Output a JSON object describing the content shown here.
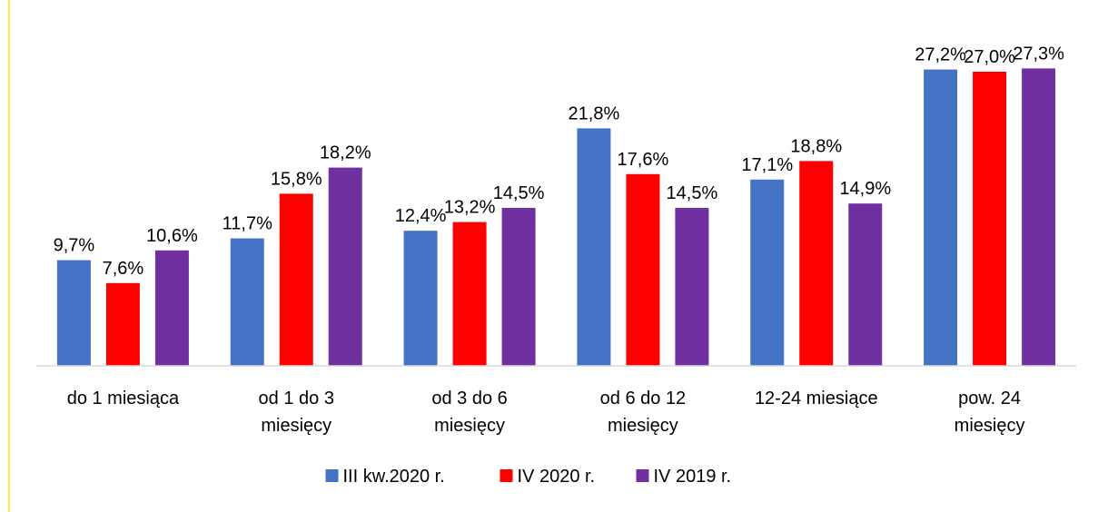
{
  "chart_data": {
    "type": "bar",
    "categories": [
      "do 1 miesiąca",
      "od 1 do 3\nmiesięcy",
      "od 3 do 6\nmiesięcy",
      "od 6 do 12\nmiesięcy",
      "12-24 miesiące",
      "pow. 24\nmiesięcy"
    ],
    "series": [
      {
        "name": "III kw.2020 r.",
        "color": "#4472c4",
        "values": [
          9.7,
          11.7,
          12.4,
          21.8,
          17.1,
          27.2
        ],
        "value_labels": [
          "9,7%",
          "11,7%",
          "12,4%",
          "21,8%",
          "17,1%",
          "27,2%"
        ]
      },
      {
        "name": "IV 2020 r.",
        "color": "#ff0000",
        "values": [
          7.6,
          15.8,
          13.2,
          17.6,
          18.8,
          27.0
        ],
        "value_labels": [
          "7,6%",
          "15,8%",
          "13,2%",
          "17,6%",
          "18,8%",
          "27,0%"
        ]
      },
      {
        "name": "IV 2019 r.",
        "color": "#7030a0",
        "values": [
          10.6,
          18.2,
          14.5,
          14.5,
          14.9,
          27.3
        ],
        "value_labels": [
          "10,6%",
          "18,2%",
          "14,5%",
          "14,5%",
          "14,9%",
          "27,3%"
        ]
      }
    ],
    "ylim": [
      0,
      30
    ],
    "legend": "bottom"
  }
}
